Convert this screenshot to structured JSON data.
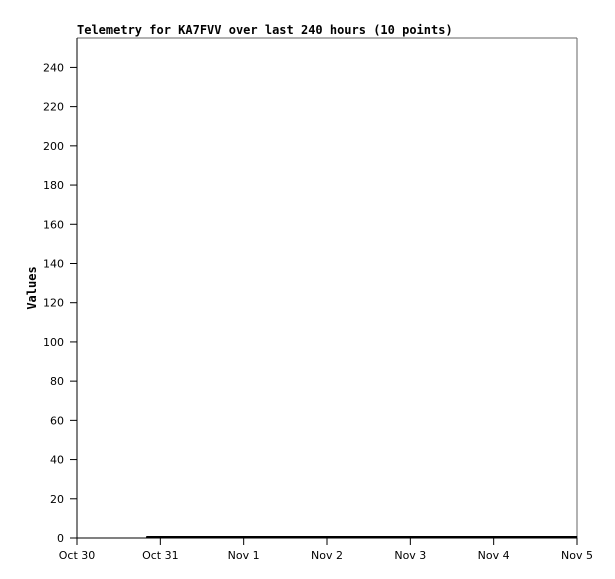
{
  "chart_data": {
    "type": "line",
    "title": "Telemetry for KA7FVV over last 240 hours (10 points)",
    "xlabel": "",
    "ylabel": "Values",
    "ylim": [
      0,
      255
    ],
    "xlim": [
      "Oct 30 00:00",
      "Nov 5 00:00"
    ],
    "yticks": [
      0,
      20,
      40,
      60,
      80,
      100,
      120,
      140,
      160,
      180,
      200,
      220,
      240
    ],
    "xticks": [
      "Oct 30",
      "Oct 31",
      "Nov 1",
      "Nov 2",
      "Nov 3",
      "Nov 4",
      "Nov 5"
    ],
    "grid": false,
    "line_color": "#000000",
    "series": [
      {
        "x": [
          "Oct 30 20:00",
          "Oct 31 10:00",
          "Nov 1 00:00",
          "Nov 1 14:00",
          "Nov 2 04:00",
          "Nov 2 18:00",
          "Nov 3 08:00",
          "Nov 3 22:00",
          "Nov 4 12:00",
          "Nov 5 00:00"
        ],
        "y": [
          0,
          0,
          0,
          0,
          0,
          0,
          0,
          0,
          0,
          0
        ]
      }
    ]
  }
}
